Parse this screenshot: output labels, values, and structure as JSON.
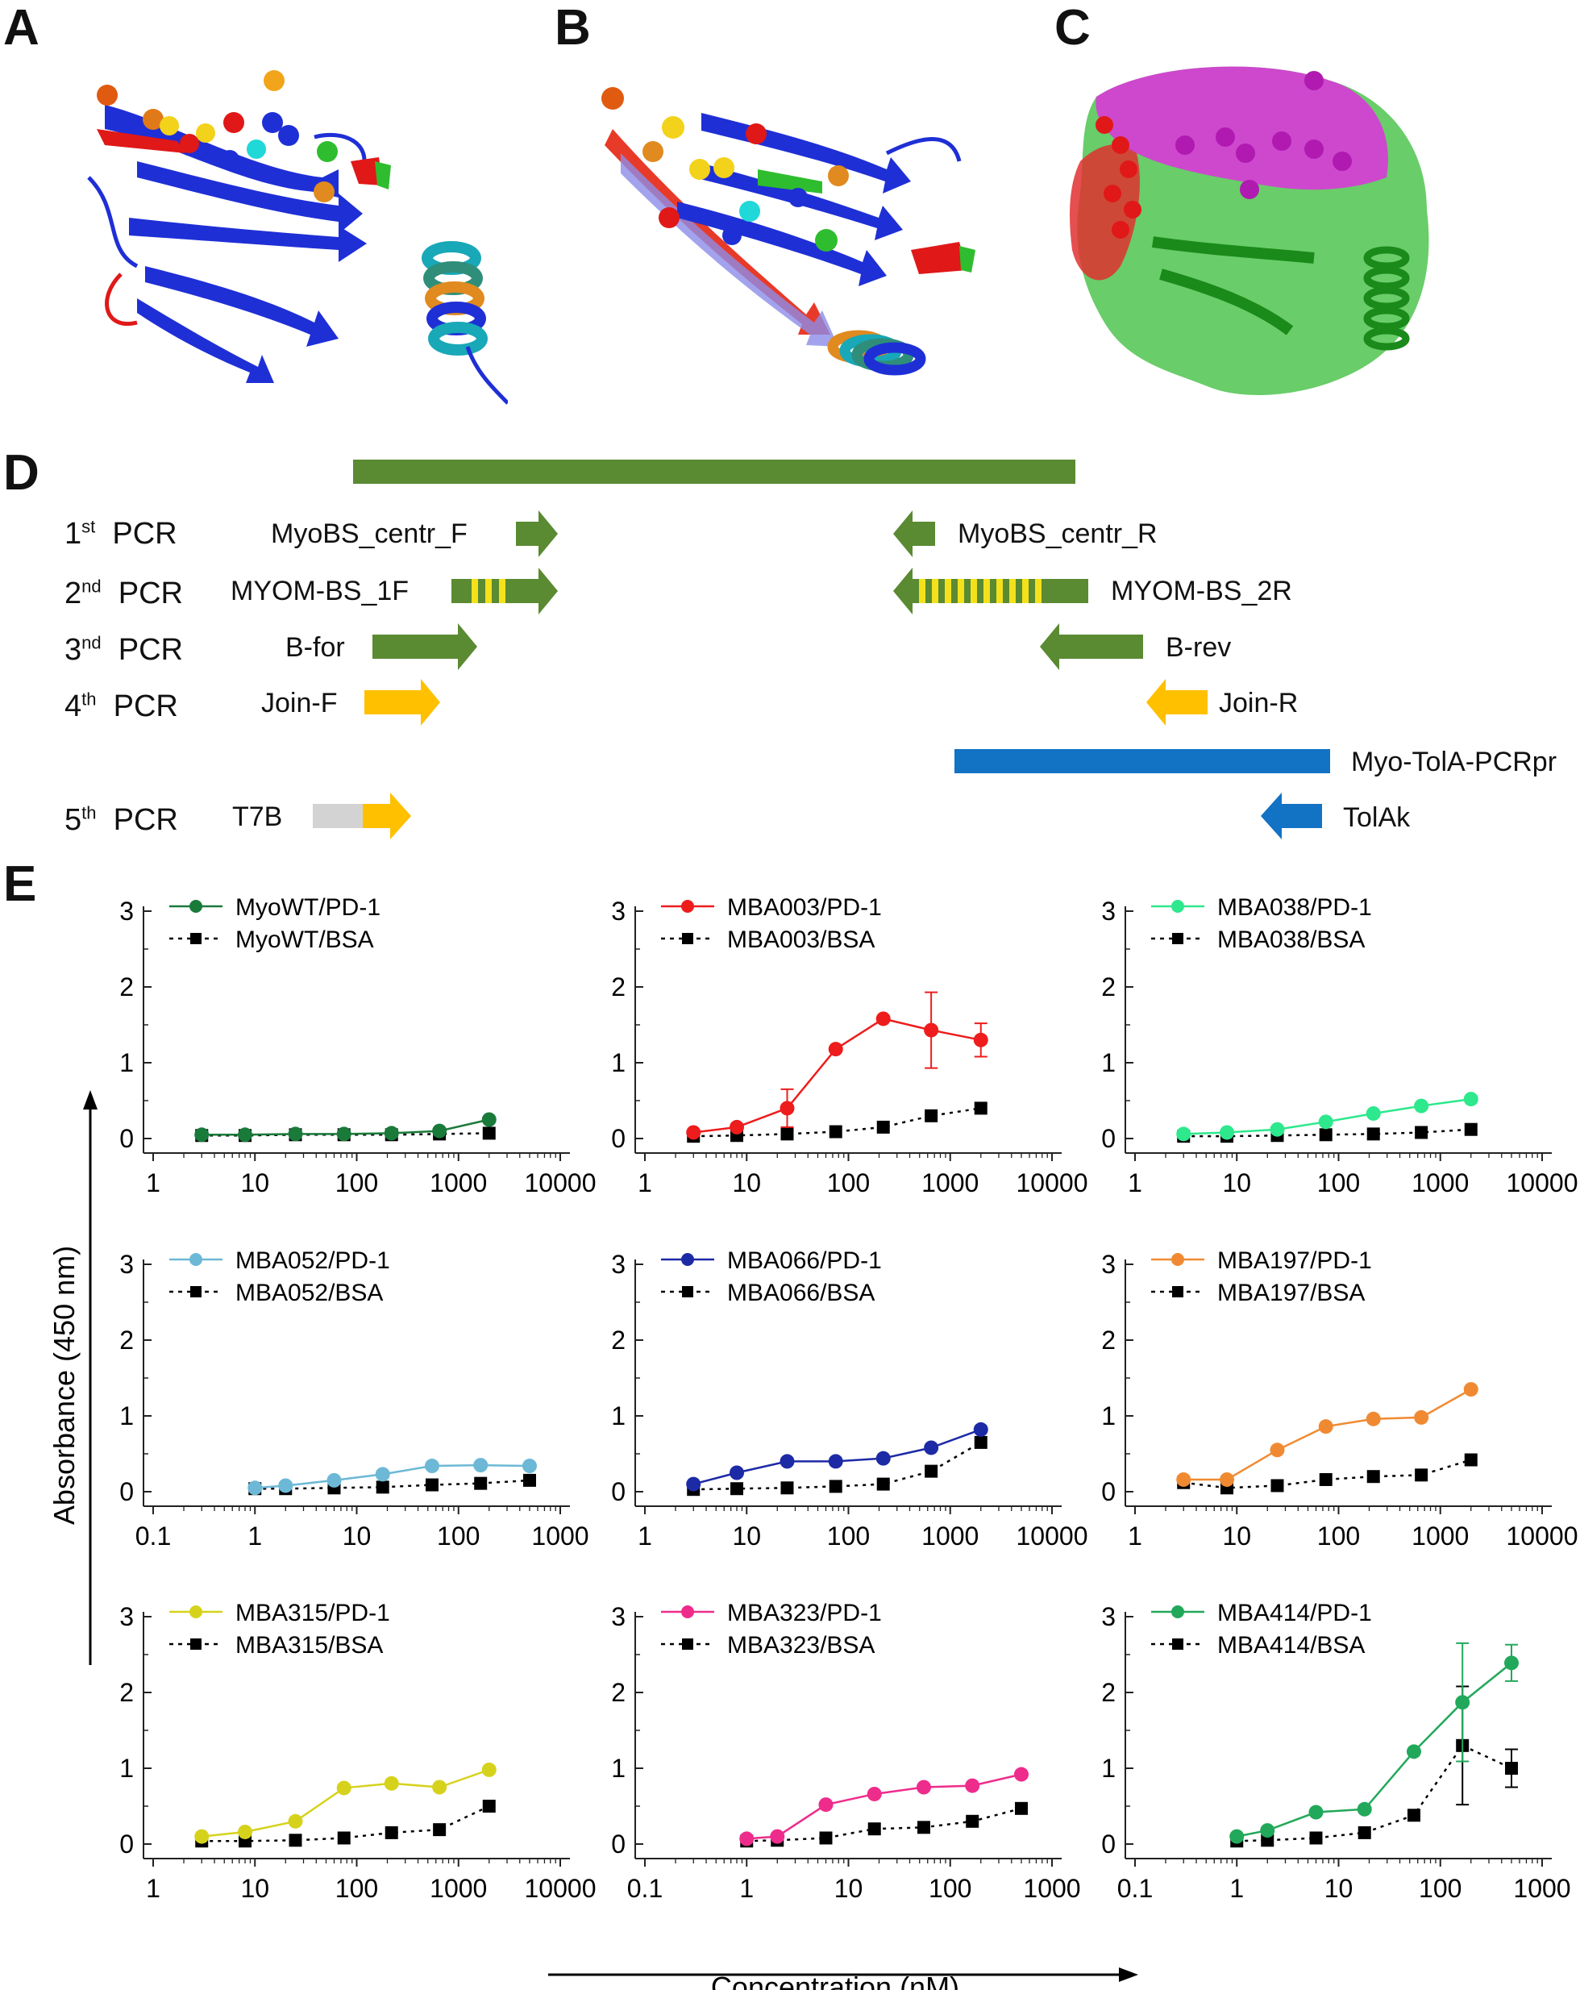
{
  "panels": {
    "A": "A",
    "B": "B",
    "C": "C",
    "D": "D",
    "E": "E"
  },
  "panel_d": {
    "rows": [
      {
        "ord": "1",
        "sup": "st",
        "pcr": "PCR",
        "left_primer": "MyoBS_centr_F",
        "right_primer": "MyoBS_centr_R"
      },
      {
        "ord": "2",
        "sup": "nd",
        "pcr": "PCR",
        "left_primer": "MYOM-BS_1F",
        "right_primer": "MYOM-BS_2R"
      },
      {
        "ord": "3",
        "sup": "nd",
        "pcr": "PCR",
        "left_primer": "B-for",
        "right_primer": "B-rev"
      },
      {
        "ord": "4",
        "sup": "th",
        "pcr": "PCR",
        "left_primer": "Join-F",
        "right_primer": "Join-R"
      },
      {
        "ord": "5",
        "sup": "th",
        "pcr": "PCR",
        "left_primer": "T7B",
        "right_primer": "TolAk"
      }
    ],
    "template_label": "Myo-TolA-PCRpr",
    "colors": {
      "green": "#5a8a32",
      "yellow": "#f4e11c",
      "orange": "#ffc000",
      "blue": "#1272c4",
      "grey": "#d3d3d3"
    }
  },
  "panel_e": {
    "y_axis_title": "Absorbance (450 nm)",
    "x_axis_title": "Concentration (nM)"
  },
  "chart_data": [
    {
      "type": "line",
      "title": "MyoWT",
      "xscale": "log",
      "xlim": [
        1,
        10000
      ],
      "xticks": [
        "1",
        "10",
        "100",
        "1000",
        "10000"
      ],
      "ylim": [
        0,
        3
      ],
      "yticks": [
        "0",
        "1",
        "2",
        "3"
      ],
      "color": "#1a7a3a",
      "series": [
        {
          "name": "MyoWT/PD-1",
          "x": [
            3,
            8,
            25,
            75,
            220,
            650,
            2000
          ],
          "y": [
            0.05,
            0.05,
            0.06,
            0.06,
            0.07,
            0.1,
            0.25
          ]
        },
        {
          "name": "MyoWT/BSA",
          "x": [
            3,
            8,
            25,
            75,
            220,
            650,
            2000
          ],
          "y": [
            0.04,
            0.04,
            0.05,
            0.05,
            0.05,
            0.06,
            0.07
          ]
        }
      ]
    },
    {
      "type": "line",
      "title": "MBA003",
      "xscale": "log",
      "xlim": [
        1,
        10000
      ],
      "xticks": [
        "1",
        "10",
        "100",
        "1000",
        "10000"
      ],
      "ylim": [
        0,
        3
      ],
      "yticks": [
        "0",
        "1",
        "2",
        "3"
      ],
      "color": "#ee1c1c",
      "series": [
        {
          "name": "MBA003/PD-1",
          "x": [
            3,
            8,
            25,
            75,
            220,
            650,
            2000
          ],
          "y": [
            0.08,
            0.15,
            0.4,
            1.18,
            1.58,
            1.43,
            1.3
          ],
          "err": [
            0,
            0,
            0.25,
            0,
            0,
            0.5,
            0.22
          ]
        },
        {
          "name": "MBA003/BSA",
          "x": [
            3,
            8,
            25,
            75,
            220,
            650,
            2000
          ],
          "y": [
            0.03,
            0.04,
            0.06,
            0.09,
            0.15,
            0.3,
            0.4
          ]
        }
      ]
    },
    {
      "type": "line",
      "title": "MBA038",
      "xscale": "log",
      "xlim": [
        1,
        10000
      ],
      "xticks": [
        "1",
        "10",
        "100",
        "1000",
        "10000"
      ],
      "ylim": [
        0,
        3
      ],
      "yticks": [
        "0",
        "1",
        "2",
        "3"
      ],
      "color": "#2de88c",
      "series": [
        {
          "name": "MBA038/PD-1",
          "x": [
            3,
            8,
            25,
            75,
            220,
            650,
            2000
          ],
          "y": [
            0.06,
            0.08,
            0.12,
            0.22,
            0.33,
            0.43,
            0.52
          ]
        },
        {
          "name": "MBA038/BSA",
          "x": [
            3,
            8,
            25,
            75,
            220,
            650,
            2000
          ],
          "y": [
            0.03,
            0.03,
            0.04,
            0.05,
            0.06,
            0.08,
            0.12
          ]
        }
      ]
    },
    {
      "type": "line",
      "title": "MBA052",
      "xscale": "log",
      "xlim": [
        0.1,
        1000
      ],
      "xticks": [
        "0.1",
        "1",
        "10",
        "100",
        "1000"
      ],
      "ylim": [
        0,
        3
      ],
      "yticks": [
        "0",
        "1",
        "2",
        "3"
      ],
      "color": "#6cb8d6",
      "series": [
        {
          "name": "MBA052/PD-1",
          "x": [
            1,
            2,
            6,
            18,
            55,
            165,
            500
          ],
          "y": [
            0.05,
            0.08,
            0.15,
            0.23,
            0.34,
            0.35,
            0.34
          ]
        },
        {
          "name": "MBA052/BSA",
          "x": [
            1,
            2,
            6,
            18,
            55,
            165,
            500
          ],
          "y": [
            0.04,
            0.04,
            0.05,
            0.06,
            0.09,
            0.11,
            0.15
          ]
        }
      ]
    },
    {
      "type": "line",
      "title": "MBA066",
      "xscale": "log",
      "xlim": [
        1,
        10000
      ],
      "xticks": [
        "1",
        "10",
        "100",
        "1000",
        "10000"
      ],
      "ylim": [
        0,
        3
      ],
      "yticks": [
        "0",
        "1",
        "2",
        "3"
      ],
      "color": "#1c2aa6",
      "series": [
        {
          "name": "MBA066/PD-1",
          "x": [
            3,
            8,
            25,
            75,
            220,
            650,
            2000
          ],
          "y": [
            0.1,
            0.25,
            0.4,
            0.4,
            0.44,
            0.58,
            0.82
          ]
        },
        {
          "name": "MBA066/BSA",
          "x": [
            3,
            8,
            25,
            75,
            220,
            650,
            2000
          ],
          "y": [
            0.03,
            0.04,
            0.05,
            0.07,
            0.1,
            0.27,
            0.65
          ]
        }
      ]
    },
    {
      "type": "line",
      "title": "MBA197",
      "xscale": "log",
      "xlim": [
        1,
        10000
      ],
      "xticks": [
        "1",
        "10",
        "100",
        "1000",
        "10000"
      ],
      "ylim": [
        0,
        3
      ],
      "yticks": [
        "0",
        "1",
        "2",
        "3"
      ],
      "color": "#f08a32",
      "series": [
        {
          "name": "MBA197/PD-1",
          "x": [
            3,
            8,
            25,
            75,
            220,
            650,
            2000
          ],
          "y": [
            0.16,
            0.16,
            0.55,
            0.86,
            0.96,
            0.98,
            1.35
          ]
        },
        {
          "name": "MBA197/BSA",
          "x": [
            3,
            8,
            25,
            75,
            220,
            650,
            2000
          ],
          "y": [
            0.12,
            0.05,
            0.08,
            0.16,
            0.2,
            0.22,
            0.42
          ]
        }
      ]
    },
    {
      "type": "line",
      "title": "MBA315",
      "xscale": "log",
      "xlim": [
        1,
        10000
      ],
      "xticks": [
        "1",
        "10",
        "100",
        "1000",
        "10000"
      ],
      "ylim": [
        0,
        3
      ],
      "yticks": [
        "0",
        "1",
        "2",
        "3"
      ],
      "color": "#d6d21c",
      "series": [
        {
          "name": "MBA315/PD-1",
          "x": [
            3,
            8,
            25,
            75,
            220,
            650,
            2000
          ],
          "y": [
            0.1,
            0.16,
            0.3,
            0.74,
            0.8,
            0.75,
            0.98
          ]
        },
        {
          "name": "MBA315/BSA",
          "x": [
            3,
            8,
            25,
            75,
            220,
            650,
            2000
          ],
          "y": [
            0.04,
            0.04,
            0.05,
            0.08,
            0.15,
            0.19,
            0.5
          ]
        }
      ]
    },
    {
      "type": "line",
      "title": "MBA323",
      "xscale": "log",
      "xlim": [
        0.1,
        1000
      ],
      "xticks": [
        "0.1",
        "1",
        "10",
        "100",
        "1000"
      ],
      "ylim": [
        0,
        3
      ],
      "yticks": [
        "0",
        "1",
        "2",
        "3"
      ],
      "color": "#ee2c8c",
      "series": [
        {
          "name": "MBA323/PD-1",
          "x": [
            1,
            2,
            6,
            18,
            55,
            165,
            500
          ],
          "y": [
            0.07,
            0.1,
            0.52,
            0.66,
            0.75,
            0.77,
            0.92
          ]
        },
        {
          "name": "MBA323/BSA",
          "x": [
            1,
            2,
            6,
            18,
            55,
            165,
            500
          ],
          "y": [
            0.04,
            0.05,
            0.08,
            0.2,
            0.22,
            0.3,
            0.47
          ]
        }
      ]
    },
    {
      "type": "line",
      "title": "MBA414",
      "xscale": "log",
      "xlim": [
        0.1,
        1000
      ],
      "xticks": [
        "0.1",
        "1",
        "10",
        "100",
        "1000"
      ],
      "ylim": [
        0,
        3
      ],
      "yticks": [
        "0",
        "1",
        "2",
        "3"
      ],
      "color": "#22a85a",
      "series": [
        {
          "name": "MBA414/PD-1",
          "x": [
            1,
            2,
            6,
            18,
            55,
            165,
            500
          ],
          "y": [
            0.1,
            0.18,
            0.42,
            0.46,
            1.22,
            1.87,
            2.39
          ],
          "err": [
            0,
            0,
            0,
            0,
            0,
            0.78,
            0.24
          ]
        },
        {
          "name": "MBA414/BSA",
          "x": [
            1,
            2,
            6,
            18,
            55,
            165,
            500
          ],
          "y": [
            0.04,
            0.05,
            0.08,
            0.15,
            0.38,
            1.3,
            1.0
          ],
          "err": [
            0,
            0,
            0,
            0,
            0,
            0.78,
            0.25
          ]
        }
      ]
    }
  ]
}
